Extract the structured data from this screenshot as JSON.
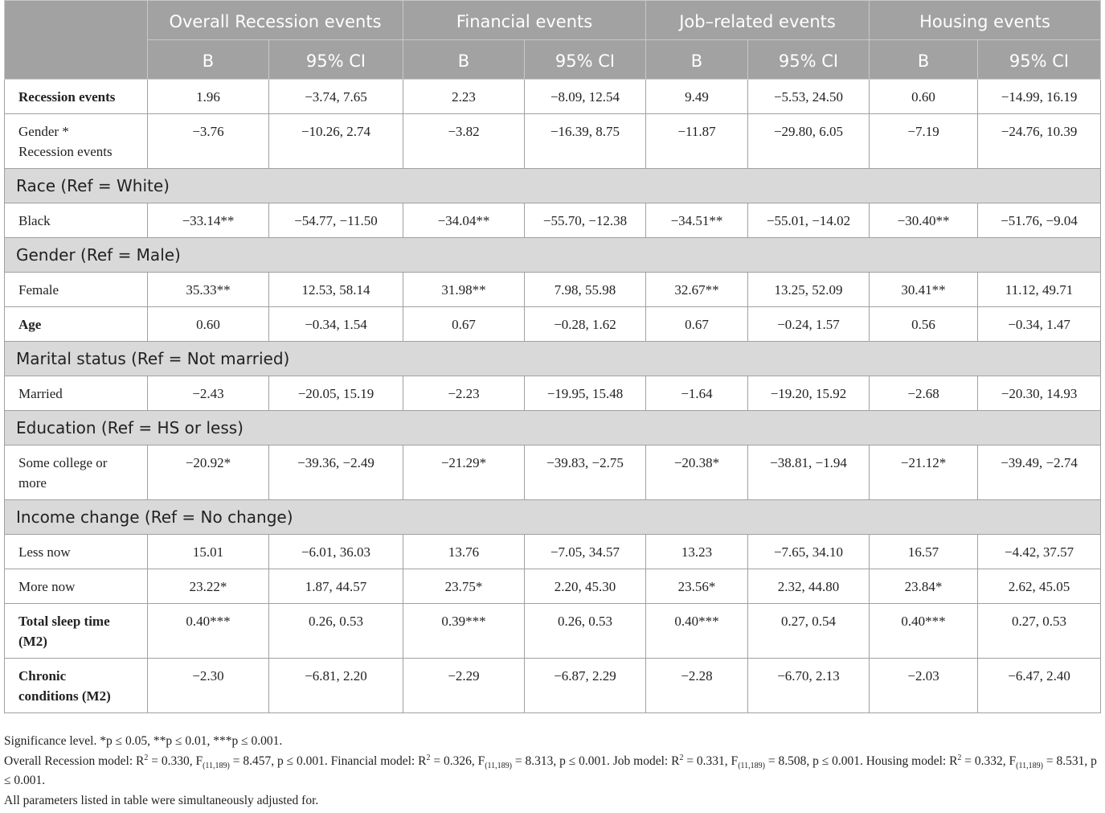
{
  "table": {
    "groups": [
      "Overall Recession events",
      "Financial events",
      "Job–related events",
      "Housing events"
    ],
    "subheaders": [
      "B",
      "95% CI",
      "B",
      "95% CI",
      "B",
      "95% CI",
      "B",
      "95% CI"
    ],
    "rows": [
      {
        "label": "Recession events",
        "bold": true,
        "cells": [
          "1.96",
          "−3.74, 7.65",
          "2.23",
          "−8.09, 12.54",
          "9.49",
          "−5.53, 24.50",
          "0.60",
          "−14.99, 16.19"
        ]
      },
      {
        "label": "Gender * Recession events",
        "bold": false,
        "cells": [
          "−3.76",
          "−10.26, 2.74",
          "−3.82",
          "−16.39, 8.75",
          "−11.87",
          "−29.80, 6.05",
          "−7.19",
          "−24.76, 10.39"
        ]
      },
      {
        "section": "Race (Ref = White)"
      },
      {
        "label": "Black",
        "bold": false,
        "cells": [
          "−33.14**",
          "−54.77, −11.50",
          "−34.04**",
          "−55.70, −12.38",
          "−34.51**",
          "−55.01, −14.02",
          "−30.40**",
          "−51.76, −9.04"
        ]
      },
      {
        "section": "Gender (Ref = Male)"
      },
      {
        "label": "Female",
        "bold": false,
        "cells": [
          "35.33**",
          "12.53, 58.14",
          "31.98**",
          "7.98, 55.98",
          "32.67**",
          "13.25, 52.09",
          "30.41**",
          "11.12, 49.71"
        ]
      },
      {
        "label": "Age",
        "bold": true,
        "cells": [
          "0.60",
          "−0.34, 1.54",
          "0.67",
          "−0.28, 1.62",
          "0.67",
          "−0.24, 1.57",
          "0.56",
          "−0.34, 1.47"
        ]
      },
      {
        "section": "Marital status (Ref = Not married)"
      },
      {
        "label": "Married",
        "bold": false,
        "cells": [
          "−2.43",
          "−20.05, 15.19",
          "−2.23",
          "−19.95, 15.48",
          "−1.64",
          "−19.20, 15.92",
          "−2.68",
          "−20.30, 14.93"
        ]
      },
      {
        "section": "Education (Ref = HS or less)"
      },
      {
        "label": "Some college or more",
        "bold": false,
        "cells": [
          "−20.92*",
          "−39.36, −2.49",
          "−21.29*",
          "−39.83, −2.75",
          "−20.38*",
          "−38.81, −1.94",
          "−21.12*",
          "−39.49, −2.74"
        ]
      },
      {
        "section": "Income change (Ref = No change)"
      },
      {
        "label": "Less now",
        "bold": false,
        "cells": [
          "15.01",
          "−6.01, 36.03",
          "13.76",
          "−7.05, 34.57",
          "13.23",
          "−7.65, 34.10",
          "16.57",
          "−4.42, 37.57"
        ]
      },
      {
        "label": "More now",
        "bold": false,
        "cells": [
          "23.22*",
          "1.87, 44.57",
          "23.75*",
          "2.20, 45.30",
          "23.56*",
          "2.32, 44.80",
          "23.84*",
          "2.62, 45.05"
        ]
      },
      {
        "label": "Total sleep time (M2)",
        "bold": true,
        "cells": [
          "0.40***",
          "0.26, 0.53",
          "0.39***",
          "0.26, 0.53",
          "0.40***",
          "0.27, 0.54",
          "0.40***",
          "0.27, 0.53"
        ]
      },
      {
        "label": "Chronic conditions (M2)",
        "bold": true,
        "cells": [
          "−2.30",
          "−6.81, 2.20",
          "−2.29",
          "−6.87, 2.29",
          "−2.28",
          "−6.70, 2.13",
          "−2.03",
          "−6.47, 2.40"
        ]
      }
    ]
  },
  "footnotes": [
    "Significance level. *p ≤ 0.05, **p ≤ 0.01, ***p ≤ 0.001.",
    [
      "Overall Recession model: R",
      "2",
      " = 0.330, F",
      "(11,189)",
      " = 8.457, p ≤ 0.001. Financial model: R",
      "2",
      " = 0.326, F",
      "(11,189)",
      " = 8.313, p ≤ 0.001. Job model: R",
      "2",
      " = 0.331, F",
      "(11,189)",
      " = 8.508, p ≤ 0.001. Housing model: R",
      "2",
      " = 0.332, F",
      "(11,189)",
      " = 8.531, p ≤ 0.001."
    ],
    "All parameters listed in table were simultaneously adjusted for."
  ]
}
